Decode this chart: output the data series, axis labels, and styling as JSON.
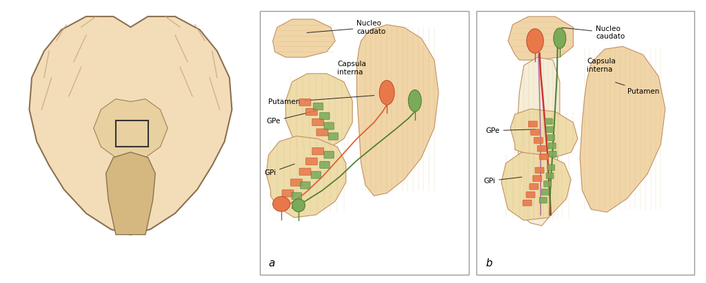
{
  "bg_color": "#ffffff",
  "skin_color": "#f0d5a8",
  "skin_dark": "#e8c890",
  "orange_color": "#e8784a",
  "green_color": "#7aaa5a",
  "red_color": "#cc3333",
  "label_a": "a",
  "label_b": "b",
  "text_nucleo": "Nucleo\ncaudato",
  "text_capsula": "Capsula\ninterna",
  "text_putamen": "Putamen",
  "text_gpe": "GPe",
  "text_gpi": "GPi",
  "arrow_color": "#2060bb",
  "line_color": "#333333"
}
